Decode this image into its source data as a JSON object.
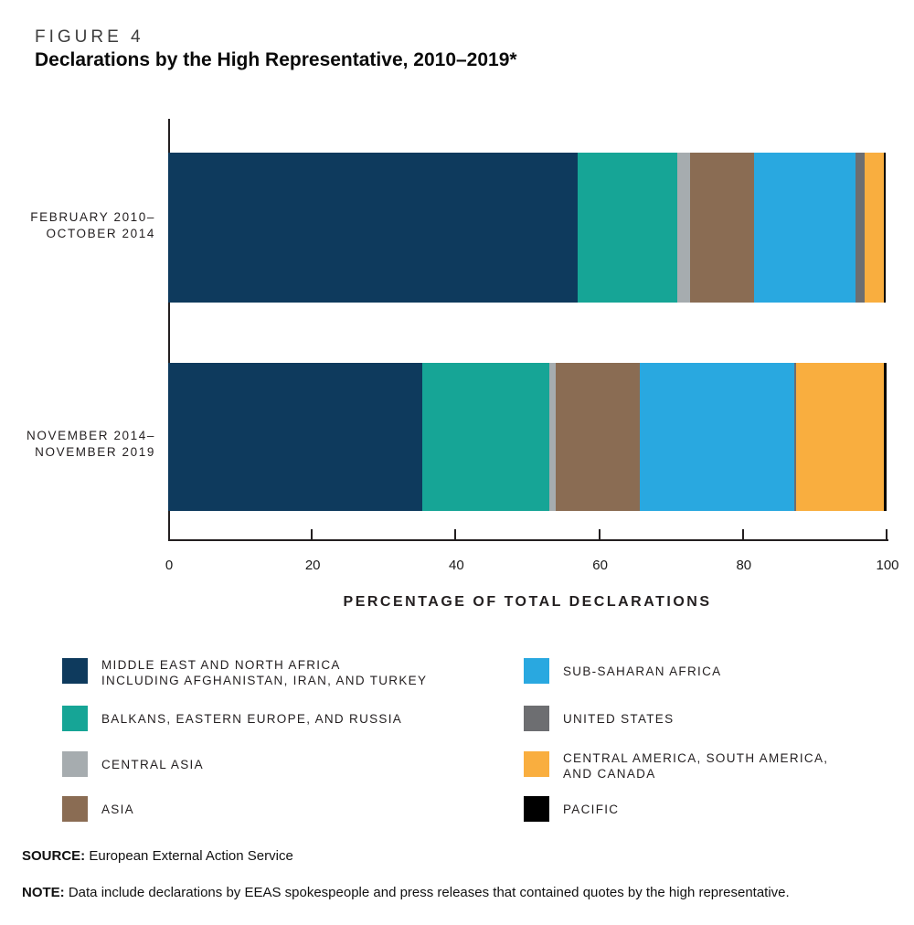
{
  "figure_label": "FIGURE 4",
  "title": "Declarations by the High Representative, 2010–2019*",
  "source": {
    "prefix": "SOURCE:",
    "text": "European External Action Service"
  },
  "note": {
    "prefix": "NOTE:",
    "text": "Data include declarations by EEAS spokespeople and press releases that contained quotes by the high representative."
  },
  "chart_data": {
    "type": "bar",
    "orientation": "horizontal_stacked",
    "title": "Declarations by the High Representative, 2010–2019*",
    "categories": [
      "FEBRUARY 2010–OCTOBER 2014",
      "NOVEMBER 2014–NOVEMBER 2019"
    ],
    "category_lines": [
      [
        "FEBRUARY 2010–",
        "OCTOBER 2014"
      ],
      [
        "NOVEMBER 2014–",
        "NOVEMBER 2019"
      ]
    ],
    "series": [
      {
        "name": "MIDDLE EAST AND NORTH AFRICA INCLUDING AFGHANISTAN, IRAN, AND TURKEY",
        "legend_lines": [
          "MIDDLE EAST AND NORTH AFRICA",
          "INCLUDING AFGHANISTAN, IRAN, AND TURKEY"
        ],
        "color": "#0e3a5d",
        "values": [
          57.0,
          35.4
        ]
      },
      {
        "name": "BALKANS, EASTERN EUROPE, AND RUSSIA",
        "legend_lines": [
          "BALKANS, EASTERN EUROPE, AND RUSSIA"
        ],
        "color": "#16a596",
        "values": [
          13.9,
          17.7
        ]
      },
      {
        "name": "CENTRAL ASIA",
        "legend_lines": [
          "CENTRAL ASIA"
        ],
        "color": "#a6acaf",
        "values": [
          1.7,
          0.9
        ]
      },
      {
        "name": "ASIA",
        "legend_lines": [
          "ASIA"
        ],
        "color": "#8a6c53",
        "values": [
          9.0,
          11.7
        ]
      },
      {
        "name": "SUB-SAHARAN AFRICA",
        "legend_lines": [
          "SUB-SAHARAN AFRICA"
        ],
        "color": "#29a8e0",
        "values": [
          14.1,
          21.5
        ]
      },
      {
        "name": "UNITED STATES",
        "legend_lines": [
          "UNITED STATES"
        ],
        "color": "#6d6e71",
        "values": [
          1.2,
          0.2
        ]
      },
      {
        "name": "CENTRAL AMERICA, SOUTH AMERICA, AND CANADA",
        "legend_lines": [
          "CENTRAL AMERICA, SOUTH AMERICA,",
          "AND CANADA"
        ],
        "color": "#f9ae3f",
        "values": [
          2.7,
          12.2
        ]
      },
      {
        "name": "PACIFIC",
        "legend_lines": [
          "PACIFIC"
        ],
        "color": "#000000",
        "values": [
          0.3,
          0.4
        ]
      }
    ],
    "xlabel": "PERCENTAGE OF TOTAL DECLARATIONS",
    "xlim": [
      0,
      100
    ],
    "xticks": [
      0,
      20,
      40,
      60,
      80,
      100
    ],
    "xtick_labels": [
      "0",
      "20",
      "40",
      "60",
      "80",
      "100"
    ],
    "grid": false,
    "legend_position": "bottom-two-columns"
  }
}
